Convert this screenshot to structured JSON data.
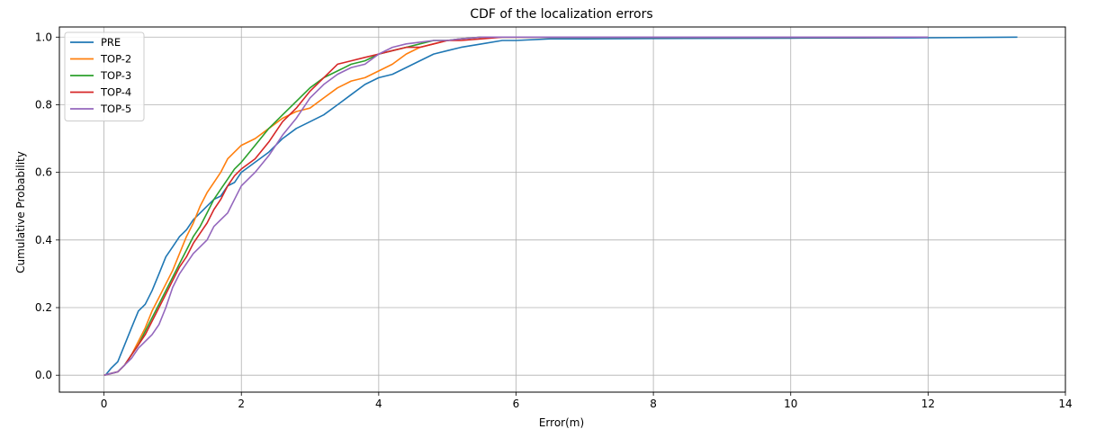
{
  "chart_data": {
    "type": "line",
    "title": "CDF of the localization errors",
    "xlabel": "Error(m)",
    "ylabel": "Cumulative Probability",
    "xlim": [
      -0.65,
      14
    ],
    "ylim": [
      -0.05,
      1.03
    ],
    "xticks": [
      0,
      2,
      4,
      6,
      8,
      10,
      12,
      14
    ],
    "yticks": [
      0.0,
      0.2,
      0.4,
      0.6,
      0.8,
      1.0
    ],
    "xtick_labels": [
      "0",
      "2",
      "4",
      "6",
      "8",
      "10",
      "12",
      "14"
    ],
    "ytick_labels": [
      "0.0",
      "0.2",
      "0.4",
      "0.6",
      "0.8",
      "1.0"
    ],
    "grid": true,
    "legend_position": "top-left",
    "series": [
      {
        "name": "PRE",
        "color": "#1f77b4",
        "x": [
          0.02,
          0.1,
          0.2,
          0.3,
          0.4,
          0.5,
          0.6,
          0.7,
          0.8,
          0.9,
          1.0,
          1.1,
          1.2,
          1.3,
          1.4,
          1.5,
          1.6,
          1.7,
          1.8,
          1.9,
          2.0,
          2.2,
          2.4,
          2.6,
          2.8,
          3.0,
          3.2,
          3.4,
          3.6,
          3.8,
          4.0,
          4.2,
          4.4,
          4.6,
          4.8,
          5.0,
          5.2,
          5.5,
          5.8,
          6.0,
          6.5,
          7.0,
          8.0,
          10.0,
          12.0,
          13.3
        ],
        "y": [
          0.0,
          0.02,
          0.04,
          0.09,
          0.14,
          0.19,
          0.21,
          0.25,
          0.3,
          0.35,
          0.38,
          0.41,
          0.43,
          0.46,
          0.48,
          0.5,
          0.52,
          0.53,
          0.56,
          0.57,
          0.6,
          0.63,
          0.66,
          0.7,
          0.73,
          0.75,
          0.77,
          0.8,
          0.83,
          0.86,
          0.88,
          0.89,
          0.91,
          0.93,
          0.95,
          0.96,
          0.97,
          0.98,
          0.99,
          0.99,
          0.995,
          0.995,
          0.996,
          0.997,
          0.998,
          1.0
        ]
      },
      {
        "name": "TOP-2",
        "color": "#ff7f0e",
        "x": [
          0.0,
          0.2,
          0.3,
          0.4,
          0.5,
          0.6,
          0.7,
          0.8,
          0.9,
          1.0,
          1.1,
          1.2,
          1.3,
          1.4,
          1.5,
          1.6,
          1.7,
          1.8,
          1.9,
          2.0,
          2.2,
          2.4,
          2.6,
          2.8,
          3.0,
          3.2,
          3.4,
          3.6,
          3.8,
          4.0,
          4.2,
          4.4,
          4.6,
          4.8,
          5.0,
          5.2,
          5.5,
          5.8,
          6.0,
          6.5,
          8.0,
          10.0,
          11.5
        ],
        "y": [
          0.0,
          0.01,
          0.03,
          0.06,
          0.1,
          0.14,
          0.19,
          0.23,
          0.27,
          0.31,
          0.36,
          0.41,
          0.45,
          0.5,
          0.54,
          0.57,
          0.6,
          0.64,
          0.66,
          0.68,
          0.7,
          0.73,
          0.76,
          0.78,
          0.79,
          0.82,
          0.85,
          0.87,
          0.88,
          0.9,
          0.92,
          0.95,
          0.97,
          0.98,
          0.99,
          0.995,
          1.0,
          1.0,
          1.0,
          1.0,
          1.0,
          1.0,
          1.0
        ]
      },
      {
        "name": "TOP-3",
        "color": "#2ca02c",
        "x": [
          0.0,
          0.2,
          0.3,
          0.4,
          0.5,
          0.6,
          0.7,
          0.8,
          0.9,
          1.0,
          1.1,
          1.2,
          1.3,
          1.4,
          1.5,
          1.6,
          1.7,
          1.8,
          1.9,
          2.0,
          2.2,
          2.4,
          2.6,
          2.8,
          3.0,
          3.2,
          3.4,
          3.6,
          3.8,
          4.0,
          4.2,
          4.4,
          4.6,
          4.8,
          5.0,
          5.2,
          5.5,
          5.8,
          6.0,
          7.0,
          10.0,
          11.5
        ],
        "y": [
          0.0,
          0.01,
          0.03,
          0.06,
          0.09,
          0.13,
          0.17,
          0.21,
          0.25,
          0.29,
          0.33,
          0.37,
          0.41,
          0.44,
          0.48,
          0.52,
          0.55,
          0.58,
          0.61,
          0.63,
          0.68,
          0.73,
          0.77,
          0.81,
          0.85,
          0.88,
          0.9,
          0.92,
          0.93,
          0.95,
          0.96,
          0.97,
          0.98,
          0.99,
          0.99,
          0.995,
          1.0,
          1.0,
          1.0,
          1.0,
          1.0,
          1.0
        ]
      },
      {
        "name": "TOP-4",
        "color": "#d62728",
        "x": [
          0.0,
          0.2,
          0.3,
          0.4,
          0.5,
          0.6,
          0.7,
          0.8,
          0.9,
          1.0,
          1.1,
          1.2,
          1.3,
          1.4,
          1.5,
          1.6,
          1.7,
          1.8,
          1.9,
          2.0,
          2.2,
          2.4,
          2.6,
          2.8,
          3.0,
          3.2,
          3.4,
          3.6,
          3.8,
          4.0,
          4.2,
          4.4,
          4.6,
          4.8,
          5.0,
          5.2,
          5.5,
          5.8,
          6.0,
          7.0,
          10.0,
          11.5
        ],
        "y": [
          0.0,
          0.01,
          0.03,
          0.06,
          0.09,
          0.12,
          0.16,
          0.2,
          0.24,
          0.28,
          0.32,
          0.35,
          0.39,
          0.42,
          0.45,
          0.49,
          0.52,
          0.56,
          0.59,
          0.61,
          0.64,
          0.69,
          0.75,
          0.79,
          0.84,
          0.88,
          0.92,
          0.93,
          0.94,
          0.95,
          0.96,
          0.97,
          0.97,
          0.98,
          0.99,
          0.99,
          0.995,
          1.0,
          1.0,
          1.0,
          1.0,
          1.0
        ]
      },
      {
        "name": "TOP-5",
        "color": "#9467bd",
        "x": [
          0.0,
          0.2,
          0.3,
          0.4,
          0.5,
          0.6,
          0.7,
          0.8,
          0.9,
          1.0,
          1.1,
          1.2,
          1.3,
          1.4,
          1.5,
          1.6,
          1.7,
          1.8,
          1.9,
          2.0,
          2.2,
          2.4,
          2.6,
          2.8,
          3.0,
          3.2,
          3.4,
          3.6,
          3.8,
          4.0,
          4.2,
          4.4,
          4.6,
          4.8,
          5.0,
          5.2,
          5.5,
          6.0,
          7.0,
          10.0,
          12.0
        ],
        "y": [
          0.0,
          0.01,
          0.03,
          0.05,
          0.08,
          0.1,
          0.12,
          0.15,
          0.2,
          0.26,
          0.3,
          0.33,
          0.36,
          0.38,
          0.4,
          0.44,
          0.46,
          0.48,
          0.52,
          0.56,
          0.6,
          0.65,
          0.71,
          0.76,
          0.82,
          0.86,
          0.89,
          0.91,
          0.92,
          0.95,
          0.97,
          0.98,
          0.985,
          0.99,
          0.99,
          0.995,
          1.0,
          1.0,
          1.0,
          1.0,
          1.0
        ]
      }
    ]
  }
}
